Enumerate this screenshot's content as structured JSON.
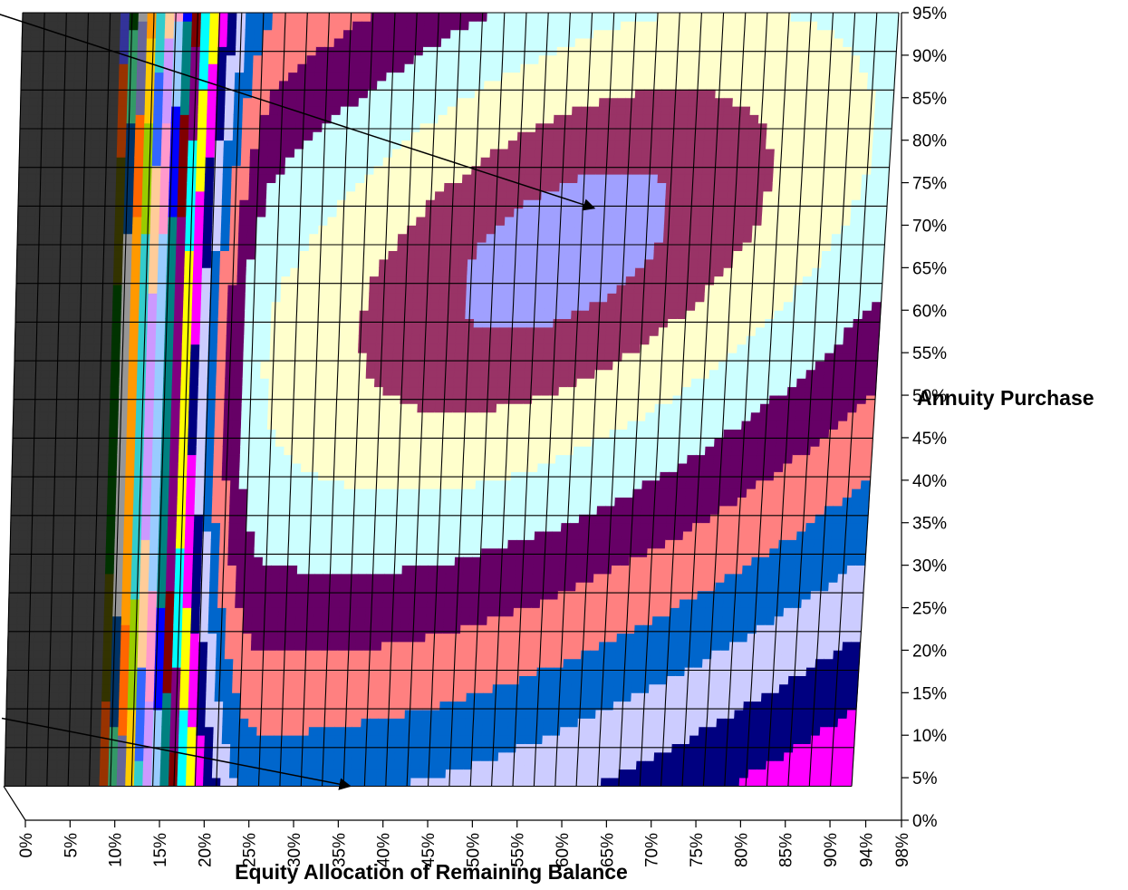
{
  "chart_data": {
    "type": "heatmap",
    "subtype": "3d-surface-contour (top view)",
    "title": "",
    "xlabel": "Equity Allocation of Remaining Balance",
    "ylabel": "Annuity Purchase",
    "x_ticks": [
      "0%",
      "5%",
      "10%",
      "15%",
      "20%",
      "25%",
      "30%",
      "35%",
      "40%",
      "45%",
      "50%",
      "55%",
      "60%",
      "65%",
      "70%",
      "75%",
      "80%",
      "85%",
      "90%",
      "94%",
      "98%"
    ],
    "y_ticks": [
      "0%",
      "5%",
      "10%",
      "15%",
      "20%",
      "25%",
      "30%",
      "35%",
      "40%",
      "45%",
      "50%",
      "55%",
      "60%",
      "65%",
      "70%",
      "75%",
      "80%",
      "85%",
      "90%",
      "95%"
    ],
    "x_range": [
      0,
      98
    ],
    "y_range": [
      0,
      95
    ],
    "grid": true,
    "legend": "none",
    "band_colors": [
      "#A0A0FF",
      "#993366",
      "#FFFFCC",
      "#CCFFFF",
      "#660066",
      "#FF8080",
      "#0066CC",
      "#CCCCFF",
      "#000080",
      "#FF00FF",
      "#FFFF00",
      "#00FFFF",
      "#800080",
      "#800000",
      "#008080",
      "#0000FF",
      "#99CCFF",
      "#FF99CC",
      "#CC99FF",
      "#FFCC99",
      "#3366FF",
      "#33CCCC",
      "#99CC00",
      "#FFCC00",
      "#FF9900",
      "#FF6600",
      "#666699",
      "#969696",
      "#003366",
      "#339966",
      "#003300",
      "#333300",
      "#993300",
      "#333399",
      "#333333"
    ],
    "contour_peak": {
      "x": 62,
      "y": 67
    },
    "arrows": [
      {
        "from": {
          "x": -8,
          "y": 95
        },
        "to": {
          "x": 65,
          "y": 72
        }
      },
      {
        "from": {
          "x": -4,
          "y": 12
        },
        "to": {
          "x": 40,
          "y": 4
        }
      }
    ]
  }
}
